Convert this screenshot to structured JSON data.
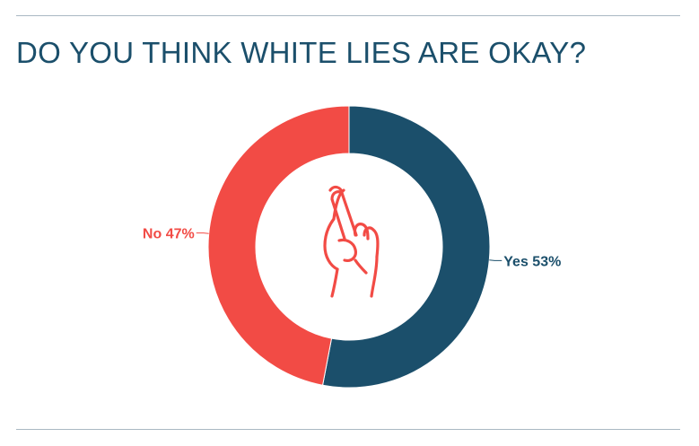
{
  "title": "DO YOU THINK WHITE LIES ARE OKAY?",
  "colors": {
    "yes": "#1b4f6b",
    "no": "#f24b45",
    "title": "#1b4f6b",
    "rule": "#a9b8c3"
  },
  "center_icon": "crossed-fingers-icon",
  "chart_data": {
    "type": "pie",
    "donut": true,
    "title": "DO YOU THINK WHITE LIES ARE OKAY?",
    "slices": [
      {
        "label": "Yes",
        "value": 53,
        "display": "Yes 53%",
        "color": "#1b4f6b"
      },
      {
        "label": "No",
        "value": 47,
        "display": "No 47%",
        "color": "#f24b45"
      }
    ],
    "legend": "none"
  }
}
